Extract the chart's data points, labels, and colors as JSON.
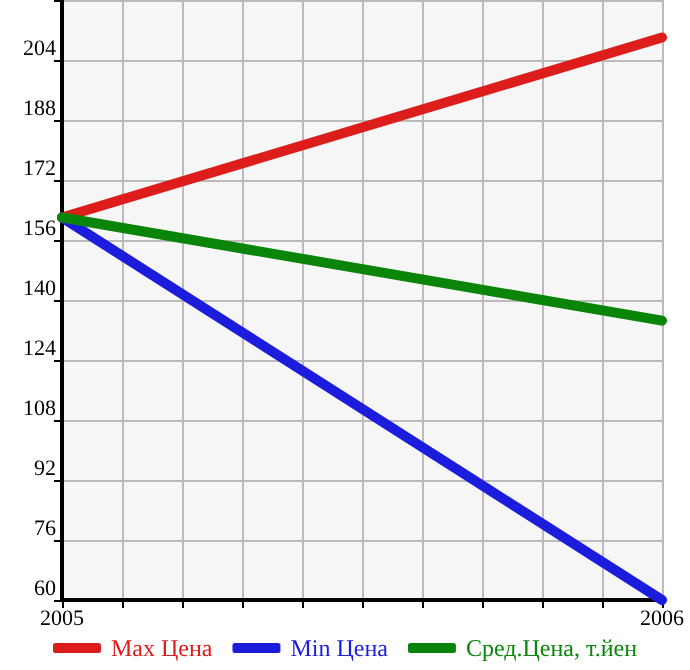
{
  "chart_data": {
    "type": "line",
    "x": [
      2005,
      2006
    ],
    "series": [
      {
        "name": "Max Цена",
        "color": "#dd1c1c",
        "values": [
          162,
          210
        ]
      },
      {
        "name": "Min Цена",
        "color": "#1c1cdd",
        "values": [
          162,
          60
        ]
      },
      {
        "name": "Сред.Цена, т.йен",
        "color": "#0a850a",
        "values": [
          162,
          134.5
        ]
      }
    ],
    "xlim": [
      2005,
      2006
    ],
    "xticks": [
      2005,
      {
        "value": 2005.1,
        "label": null
      },
      {
        "value": 2005.2,
        "label": null
      },
      {
        "value": 2005.3,
        "label": null
      },
      {
        "value": 2005.4,
        "label": null
      },
      {
        "value": 2005.5,
        "label": null
      },
      {
        "value": 2005.6,
        "label": null
      },
      {
        "value": 2005.7,
        "label": null
      },
      {
        "value": 2005.8,
        "label": null
      },
      {
        "value": 2005.9,
        "label": null
      },
      2006
    ],
    "ylim": [
      60,
      220
    ],
    "yticks": [
      60,
      76,
      92,
      108,
      124,
      140,
      156,
      172,
      188,
      204
    ],
    "grid": true,
    "legend": "bottom",
    "marker": "none",
    "line_style": "solid"
  }
}
